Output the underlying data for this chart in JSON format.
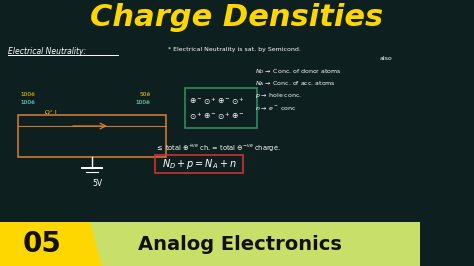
{
  "bg_color": "#0d1f1f",
  "title": "Charge Densities",
  "title_color": "#FFD700",
  "title_fontsize": 22,
  "white": "#FFFFFF",
  "cyan_color": "#80FFEE",
  "yellow_color": "#FFD700",
  "orange_color": "#CC7733",
  "green_box_color": "#2d8a5e",
  "red_box_color": "#CC3333",
  "bottom_bar_yellow": "#FFD700",
  "bottom_bar_green": "#c8df6a",
  "bottom_number": "05",
  "bottom_text": "Analog Electronics",
  "figsize": [
    4.74,
    2.66
  ],
  "dpi": 100
}
